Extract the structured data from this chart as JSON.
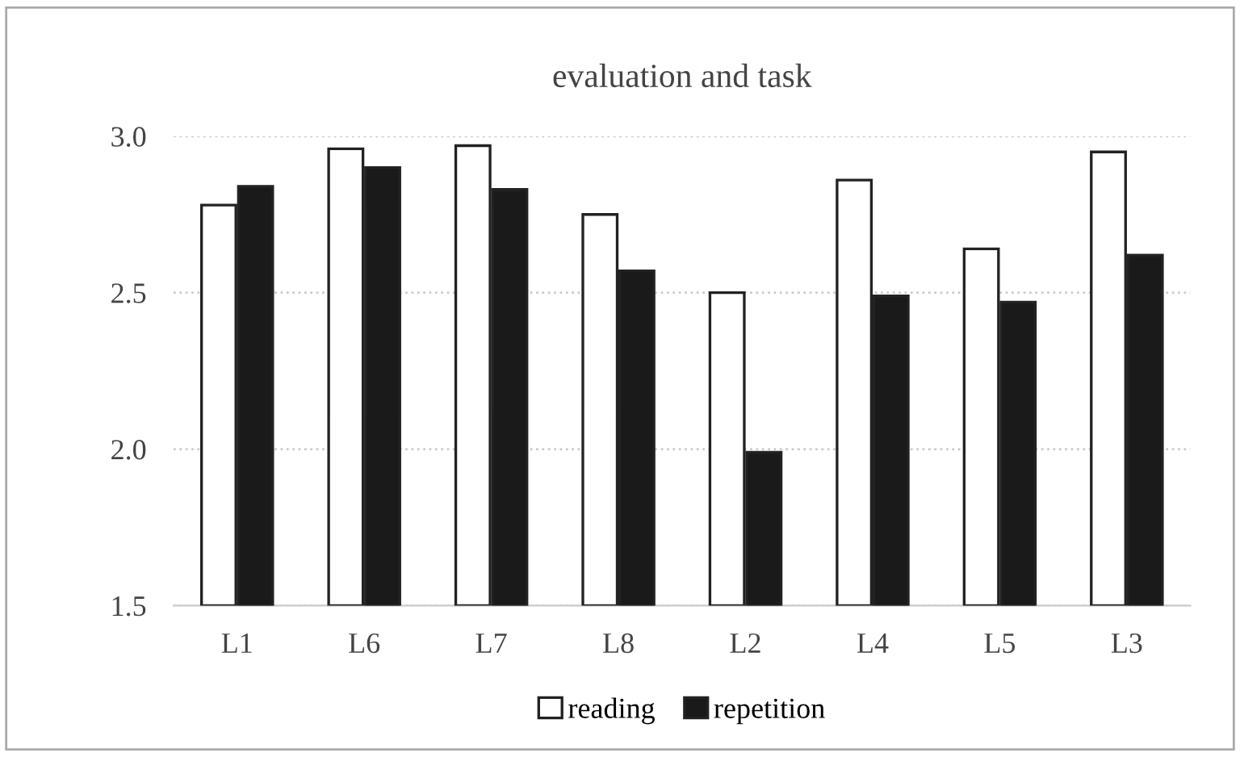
{
  "chart_data": {
    "type": "bar",
    "title": "evaluation and task",
    "categories": [
      "L1",
      "L6",
      "L7",
      "L8",
      "L2",
      "L4",
      "L5",
      "L3"
    ],
    "series": [
      {
        "name": "reading",
        "color": "#ffffff",
        "values": [
          2.78,
          2.96,
          2.97,
          2.75,
          2.5,
          2.86,
          2.64,
          2.95
        ]
      },
      {
        "name": "repetition",
        "color": "#1a1a1a",
        "values": [
          2.84,
          2.9,
          2.83,
          2.57,
          1.99,
          2.49,
          2.47,
          2.62
        ]
      }
    ],
    "ylim": [
      1.5,
      3.0
    ],
    "yticks": [
      {
        "value": 1.5,
        "label": "1.5"
      },
      {
        "value": 2.0,
        "label": "2.0"
      },
      {
        "value": 2.5,
        "label": "2.5"
      },
      {
        "value": 3.0,
        "label": "3.0"
      }
    ],
    "grid": "y",
    "legend": "bottom"
  }
}
